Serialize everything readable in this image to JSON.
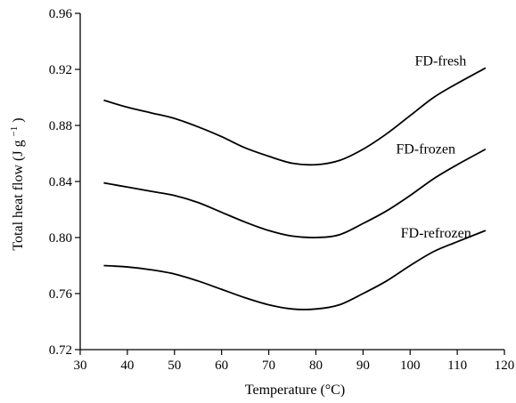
{
  "chart_data": {
    "type": "line",
    "title": "",
    "xlabel": "Temperature (°C)",
    "ylabel_main": "Total heat flow (J g",
    "ylabel_sup": "−1",
    "ylabel_close": ")",
    "xlim": [
      30,
      120
    ],
    "ylim": [
      0.72,
      0.96
    ],
    "x_ticks": [
      30,
      40,
      50,
      60,
      70,
      80,
      90,
      100,
      110,
      120
    ],
    "y_ticks": [
      "0.72",
      "0.76",
      "0.80",
      "0.84",
      "0.88",
      "0.92",
      "0.96"
    ],
    "grid": false,
    "legend": "none",
    "line_color": "#000000",
    "series": [
      {
        "name": "FD-fresh",
        "x": [
          35,
          40,
          45,
          50,
          55,
          60,
          65,
          70,
          75,
          80,
          85,
          90,
          95,
          100,
          105,
          110,
          116
        ],
        "y": [
          0.898,
          0.893,
          0.889,
          0.885,
          0.879,
          0.872,
          0.864,
          0.858,
          0.853,
          0.852,
          0.855,
          0.863,
          0.874,
          0.887,
          0.9,
          0.91,
          0.921
        ]
      },
      {
        "name": "FD-frozen",
        "x": [
          35,
          40,
          45,
          50,
          55,
          60,
          65,
          70,
          75,
          80,
          85,
          90,
          95,
          100,
          105,
          110,
          116
        ],
        "y": [
          0.839,
          0.836,
          0.833,
          0.83,
          0.825,
          0.818,
          0.811,
          0.805,
          0.801,
          0.8,
          0.802,
          0.81,
          0.819,
          0.83,
          0.842,
          0.852,
          0.863
        ]
      },
      {
        "name": "FD-refrozen",
        "x": [
          35,
          40,
          45,
          50,
          55,
          60,
          65,
          70,
          75,
          80,
          85,
          90,
          95,
          100,
          105,
          110,
          116
        ],
        "y": [
          0.78,
          0.779,
          0.777,
          0.774,
          0.769,
          0.763,
          0.757,
          0.752,
          0.749,
          0.749,
          0.752,
          0.76,
          0.769,
          0.78,
          0.79,
          0.797,
          0.805
        ]
      }
    ],
    "series_label_anchor": [
      {
        "x": 101,
        "y": 0.923
      },
      {
        "x": 97,
        "y": 0.86
      },
      {
        "x": 98,
        "y": 0.8
      }
    ]
  }
}
